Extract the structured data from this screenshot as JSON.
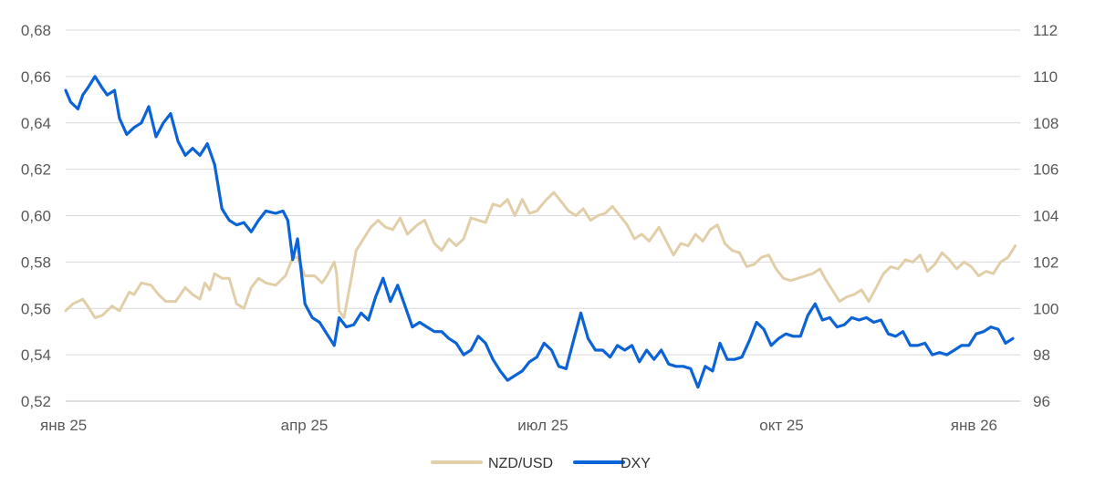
{
  "chart_data": {
    "type": "line",
    "title": "",
    "xlabel": "",
    "y_left_label": "",
    "y_right_label": "",
    "grid": true,
    "legend_position": "bottom-center",
    "x_ticks": [
      "янв 25",
      "апр 25",
      "июл 25",
      "окт 25",
      "янв 26"
    ],
    "y_left": {
      "min": 0.52,
      "max": 0.68,
      "ticks": [
        "0,52",
        "0,54",
        "0,56",
        "0,58",
        "0,60",
        "0,62",
        "0,64",
        "0,66",
        "0,68"
      ]
    },
    "y_right": {
      "min": 96,
      "max": 112,
      "ticks": [
        "96",
        "98",
        "100",
        "102",
        "104",
        "106",
        "108",
        "110",
        "112"
      ]
    },
    "colors": {
      "NZD/USD": "#e0cfa8",
      "DXY": "#0b63d6",
      "grid": "#d9d9d9"
    },
    "x_domain": [
      "2025-01-01",
      "2026-01-27"
    ],
    "series": [
      {
        "name": "NZD/USD",
        "axis": "left",
        "points": [
          [
            "2025-01-01",
            0.559
          ],
          [
            "2025-01-04",
            0.562
          ],
          [
            "2025-01-08",
            0.564
          ],
          [
            "2025-01-10",
            0.561
          ],
          [
            "2025-01-13",
            0.556
          ],
          [
            "2025-01-16",
            0.557
          ],
          [
            "2025-01-20",
            0.561
          ],
          [
            "2025-01-23",
            0.559
          ],
          [
            "2025-01-27",
            0.567
          ],
          [
            "2025-01-29",
            0.566
          ],
          [
            "2025-02-01",
            0.571
          ],
          [
            "2025-02-05",
            0.57
          ],
          [
            "2025-02-08",
            0.566
          ],
          [
            "2025-02-11",
            0.563
          ],
          [
            "2025-02-15",
            0.563
          ],
          [
            "2025-02-19",
            0.569
          ],
          [
            "2025-02-22",
            0.566
          ],
          [
            "2025-02-25",
            0.564
          ],
          [
            "2025-02-27",
            0.571
          ],
          [
            "2025-03-01",
            0.568
          ],
          [
            "2025-03-03",
            0.575
          ],
          [
            "2025-03-06",
            0.573
          ],
          [
            "2025-03-09",
            0.573
          ],
          [
            "2025-03-12",
            0.562
          ],
          [
            "2025-03-15",
            0.56
          ],
          [
            "2025-03-18",
            0.569
          ],
          [
            "2025-03-21",
            0.573
          ],
          [
            "2025-03-24",
            0.571
          ],
          [
            "2025-03-28",
            0.57
          ],
          [
            "2025-04-01",
            0.574
          ],
          [
            "2025-04-04",
            0.582
          ],
          [
            "2025-04-06",
            0.582
          ],
          [
            "2025-04-09",
            0.574
          ],
          [
            "2025-04-13",
            0.574
          ],
          [
            "2025-04-16",
            0.571
          ],
          [
            "2025-04-18",
            0.574
          ],
          [
            "2025-04-21",
            0.58
          ],
          [
            "2025-04-22",
            0.575
          ],
          [
            "2025-04-23",
            0.559
          ],
          [
            "2025-04-25",
            0.556
          ],
          [
            "2025-04-28",
            0.573
          ],
          [
            "2025-04-30",
            0.585
          ],
          [
            "2025-05-03",
            0.59
          ],
          [
            "2025-05-06",
            0.595
          ],
          [
            "2025-05-09",
            0.598
          ],
          [
            "2025-05-12",
            0.595
          ],
          [
            "2025-05-15",
            0.594
          ],
          [
            "2025-05-18",
            0.599
          ],
          [
            "2025-05-21",
            0.592
          ],
          [
            "2025-05-25",
            0.596
          ],
          [
            "2025-05-28",
            0.598
          ],
          [
            "2025-06-01",
            0.588
          ],
          [
            "2025-06-04",
            0.585
          ],
          [
            "2025-06-07",
            0.59
          ],
          [
            "2025-06-10",
            0.587
          ],
          [
            "2025-06-13",
            0.59
          ],
          [
            "2025-06-16",
            0.599
          ],
          [
            "2025-06-19",
            0.598
          ],
          [
            "2025-06-22",
            0.597
          ],
          [
            "2025-06-25",
            0.605
          ],
          [
            "2025-06-28",
            0.604
          ],
          [
            "2025-07-01",
            0.607
          ],
          [
            "2025-07-04",
            0.6
          ],
          [
            "2025-07-07",
            0.607
          ],
          [
            "2025-07-10",
            0.601
          ],
          [
            "2025-07-13",
            0.602
          ],
          [
            "2025-07-17",
            0.607
          ],
          [
            "2025-07-20",
            0.61
          ],
          [
            "2025-07-23",
            0.606
          ],
          [
            "2025-07-26",
            0.602
          ],
          [
            "2025-07-29",
            0.6
          ],
          [
            "2025-08-01",
            0.603
          ],
          [
            "2025-08-04",
            0.598
          ],
          [
            "2025-08-07",
            0.6
          ],
          [
            "2025-08-10",
            0.601
          ],
          [
            "2025-08-13",
            0.604
          ],
          [
            "2025-08-16",
            0.6
          ],
          [
            "2025-08-19",
            0.596
          ],
          [
            "2025-08-22",
            0.59
          ],
          [
            "2025-08-25",
            0.592
          ],
          [
            "2025-08-28",
            0.589
          ],
          [
            "2025-09-01",
            0.595
          ],
          [
            "2025-09-04",
            0.589
          ],
          [
            "2025-09-07",
            0.583
          ],
          [
            "2025-09-10",
            0.588
          ],
          [
            "2025-09-13",
            0.587
          ],
          [
            "2025-09-16",
            0.592
          ],
          [
            "2025-09-19",
            0.589
          ],
          [
            "2025-09-22",
            0.594
          ],
          [
            "2025-09-25",
            0.596
          ],
          [
            "2025-09-28",
            0.588
          ],
          [
            "2025-10-01",
            0.585
          ],
          [
            "2025-10-04",
            0.584
          ],
          [
            "2025-10-07",
            0.578
          ],
          [
            "2025-10-10",
            0.579
          ],
          [
            "2025-10-13",
            0.582
          ],
          [
            "2025-10-16",
            0.583
          ],
          [
            "2025-10-19",
            0.577
          ],
          [
            "2025-10-22",
            0.573
          ],
          [
            "2025-10-25",
            0.572
          ],
          [
            "2025-10-28",
            0.573
          ],
          [
            "2025-10-31",
            0.574
          ],
          [
            "2025-11-03",
            0.575
          ],
          [
            "2025-11-06",
            0.577
          ],
          [
            "2025-11-08",
            0.573
          ],
          [
            "2025-11-11",
            0.568
          ],
          [
            "2025-11-14",
            0.563
          ],
          [
            "2025-11-17",
            0.565
          ],
          [
            "2025-11-20",
            0.566
          ],
          [
            "2025-11-23",
            0.568
          ],
          [
            "2025-11-26",
            0.563
          ],
          [
            "2025-11-29",
            0.569
          ],
          [
            "2025-12-02",
            0.575
          ],
          [
            "2025-12-05",
            0.578
          ],
          [
            "2025-12-08",
            0.577
          ],
          [
            "2025-12-11",
            0.581
          ],
          [
            "2025-12-14",
            0.58
          ],
          [
            "2025-12-17",
            0.583
          ],
          [
            "2025-12-20",
            0.576
          ],
          [
            "2025-12-23",
            0.579
          ],
          [
            "2025-12-26",
            0.584
          ],
          [
            "2025-12-29",
            0.581
          ],
          [
            "2026-01-01",
            0.577
          ],
          [
            "2026-01-04",
            0.58
          ],
          [
            "2026-01-07",
            0.578
          ],
          [
            "2026-01-10",
            0.574
          ],
          [
            "2026-01-13",
            0.576
          ],
          [
            "2026-01-16",
            0.575
          ],
          [
            "2026-01-19",
            0.58
          ],
          [
            "2026-01-22",
            0.582
          ],
          [
            "2026-01-25",
            0.587
          ]
        ]
      },
      {
        "name": "DXY",
        "axis": "right",
        "points": [
          [
            "2025-01-01",
            109.4
          ],
          [
            "2025-01-03",
            108.9
          ],
          [
            "2025-01-06",
            108.6
          ],
          [
            "2025-01-08",
            109.2
          ],
          [
            "2025-01-10",
            109.5
          ],
          [
            "2025-01-13",
            110.0
          ],
          [
            "2025-01-16",
            109.5
          ],
          [
            "2025-01-18",
            109.2
          ],
          [
            "2025-01-21",
            109.4
          ],
          [
            "2025-01-23",
            108.2
          ],
          [
            "2025-01-26",
            107.5
          ],
          [
            "2025-01-29",
            107.8
          ],
          [
            "2025-02-01",
            108.0
          ],
          [
            "2025-02-04",
            108.7
          ],
          [
            "2025-02-07",
            107.4
          ],
          [
            "2025-02-10",
            108.0
          ],
          [
            "2025-02-13",
            108.4
          ],
          [
            "2025-02-16",
            107.2
          ],
          [
            "2025-02-19",
            106.6
          ],
          [
            "2025-02-22",
            106.9
          ],
          [
            "2025-02-25",
            106.6
          ],
          [
            "2025-02-28",
            107.1
          ],
          [
            "2025-03-03",
            106.2
          ],
          [
            "2025-03-06",
            104.3
          ],
          [
            "2025-03-09",
            103.8
          ],
          [
            "2025-03-12",
            103.6
          ],
          [
            "2025-03-15",
            103.7
          ],
          [
            "2025-03-18",
            103.3
          ],
          [
            "2025-03-21",
            103.8
          ],
          [
            "2025-03-24",
            104.2
          ],
          [
            "2025-03-28",
            104.1
          ],
          [
            "2025-03-31",
            104.2
          ],
          [
            "2025-04-02",
            103.8
          ],
          [
            "2025-04-04",
            102.1
          ],
          [
            "2025-04-06",
            103.0
          ],
          [
            "2025-04-09",
            100.2
          ],
          [
            "2025-04-12",
            99.6
          ],
          [
            "2025-04-15",
            99.4
          ],
          [
            "2025-04-18",
            98.9
          ],
          [
            "2025-04-21",
            98.4
          ],
          [
            "2025-04-23",
            99.6
          ],
          [
            "2025-04-26",
            99.2
          ],
          [
            "2025-04-29",
            99.3
          ],
          [
            "2025-05-02",
            99.8
          ],
          [
            "2025-05-05",
            99.5
          ],
          [
            "2025-05-08",
            100.5
          ],
          [
            "2025-05-11",
            101.3
          ],
          [
            "2025-05-14",
            100.3
          ],
          [
            "2025-05-17",
            101.0
          ],
          [
            "2025-05-20",
            100.1
          ],
          [
            "2025-05-23",
            99.2
          ],
          [
            "2025-05-26",
            99.4
          ],
          [
            "2025-05-29",
            99.2
          ],
          [
            "2025-06-01",
            99.0
          ],
          [
            "2025-06-04",
            99.0
          ],
          [
            "2025-06-07",
            98.7
          ],
          [
            "2025-06-10",
            98.5
          ],
          [
            "2025-06-13",
            98.0
          ],
          [
            "2025-06-16",
            98.2
          ],
          [
            "2025-06-19",
            98.8
          ],
          [
            "2025-06-22",
            98.5
          ],
          [
            "2025-06-25",
            97.8
          ],
          [
            "2025-06-28",
            97.3
          ],
          [
            "2025-07-01",
            96.9
          ],
          [
            "2025-07-04",
            97.1
          ],
          [
            "2025-07-07",
            97.3
          ],
          [
            "2025-07-10",
            97.7
          ],
          [
            "2025-07-13",
            97.9
          ],
          [
            "2025-07-16",
            98.5
          ],
          [
            "2025-07-19",
            98.2
          ],
          [
            "2025-07-22",
            97.5
          ],
          [
            "2025-07-25",
            97.4
          ],
          [
            "2025-07-28",
            98.6
          ],
          [
            "2025-07-31",
            99.8
          ],
          [
            "2025-08-03",
            98.7
          ],
          [
            "2025-08-06",
            98.2
          ],
          [
            "2025-08-09",
            98.2
          ],
          [
            "2025-08-12",
            97.9
          ],
          [
            "2025-08-15",
            98.4
          ],
          [
            "2025-08-18",
            98.2
          ],
          [
            "2025-08-21",
            98.4
          ],
          [
            "2025-08-24",
            97.7
          ],
          [
            "2025-08-27",
            98.2
          ],
          [
            "2025-08-30",
            97.8
          ],
          [
            "2025-09-02",
            98.2
          ],
          [
            "2025-09-05",
            97.6
          ],
          [
            "2025-09-08",
            97.5
          ],
          [
            "2025-09-11",
            97.5
          ],
          [
            "2025-09-14",
            97.4
          ],
          [
            "2025-09-17",
            96.6
          ],
          [
            "2025-09-20",
            97.5
          ],
          [
            "2025-09-23",
            97.3
          ],
          [
            "2025-09-26",
            98.5
          ],
          [
            "2025-09-29",
            97.8
          ],
          [
            "2025-10-02",
            97.8
          ],
          [
            "2025-10-05",
            97.9
          ],
          [
            "2025-10-08",
            98.6
          ],
          [
            "2025-10-11",
            99.4
          ],
          [
            "2025-10-14",
            99.1
          ],
          [
            "2025-10-17",
            98.4
          ],
          [
            "2025-10-20",
            98.7
          ],
          [
            "2025-10-23",
            98.9
          ],
          [
            "2025-10-26",
            98.8
          ],
          [
            "2025-10-29",
            98.8
          ],
          [
            "2025-11-01",
            99.7
          ],
          [
            "2025-11-04",
            100.2
          ],
          [
            "2025-11-07",
            99.5
          ],
          [
            "2025-11-10",
            99.6
          ],
          [
            "2025-11-13",
            99.2
          ],
          [
            "2025-11-16",
            99.3
          ],
          [
            "2025-11-19",
            99.6
          ],
          [
            "2025-11-22",
            99.5
          ],
          [
            "2025-11-25",
            99.6
          ],
          [
            "2025-11-28",
            99.4
          ],
          [
            "2025-12-01",
            99.5
          ],
          [
            "2025-12-04",
            98.9
          ],
          [
            "2025-12-07",
            98.8
          ],
          [
            "2025-12-10",
            99.0
          ],
          [
            "2025-12-13",
            98.4
          ],
          [
            "2025-12-16",
            98.4
          ],
          [
            "2025-12-19",
            98.5
          ],
          [
            "2025-12-22",
            98.0
          ],
          [
            "2025-12-25",
            98.1
          ],
          [
            "2025-12-28",
            98.0
          ],
          [
            "2025-12-31",
            98.2
          ],
          [
            "2026-01-03",
            98.4
          ],
          [
            "2026-01-06",
            98.4
          ],
          [
            "2026-01-09",
            98.9
          ],
          [
            "2026-01-12",
            99.0
          ],
          [
            "2026-01-15",
            99.2
          ],
          [
            "2026-01-18",
            99.1
          ],
          [
            "2026-01-21",
            98.5
          ],
          [
            "2026-01-24",
            98.7
          ]
        ]
      }
    ]
  }
}
